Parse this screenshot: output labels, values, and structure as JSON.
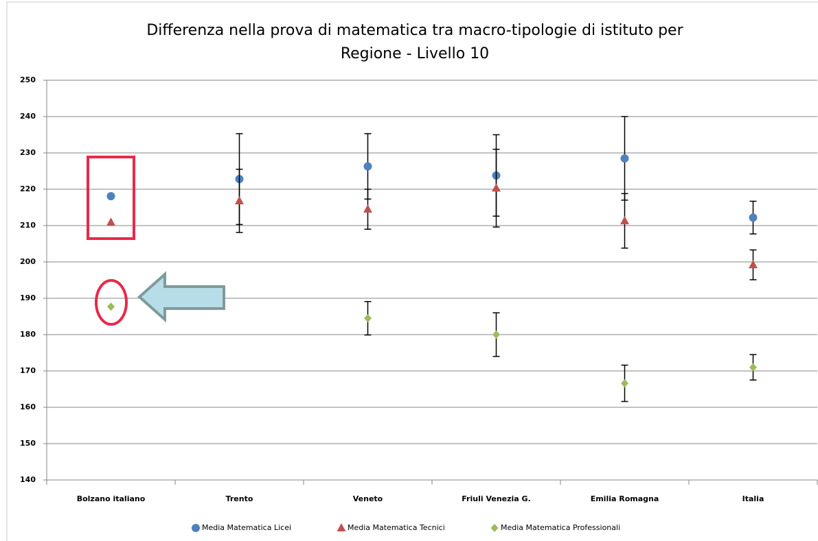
{
  "chart_data": {
    "type": "scatter",
    "title": [
      "Differenza nella prova di matematica tra macro-tipologie di istituto per",
      "Regione - Livello 10"
    ],
    "categories": [
      "Bolzano italiano",
      "Trento",
      "Veneto",
      "Friuli Venezia G.",
      "Emilia Romagna",
      "Italia"
    ],
    "series": [
      {
        "name": "Media Matematica Licei",
        "color": "#4f81bd",
        "marker": "circle",
        "values": [
          218.1,
          222.8,
          226.3,
          223.8,
          228.5,
          212.2
        ],
        "errors": [
          null,
          12.5,
          9,
          11.2,
          11.5,
          4.5
        ]
      },
      {
        "name": "Media Matematica Tecnici",
        "color": "#c0504d",
        "marker": "triangle",
        "values": [
          210.9,
          216.8,
          214.5,
          220.3,
          211.3,
          199.2
        ],
        "errors": [
          null,
          8.7,
          5.5,
          10.7,
          7.5,
          4.1
        ]
      },
      {
        "name": "Media Matematica Professionali",
        "color": "#9bbb59",
        "marker": "diamond",
        "values": [
          187.7,
          null,
          184.5,
          180,
          166.6,
          171
        ],
        "errors": [
          null,
          null,
          4.6,
          6,
          5,
          3.5
        ]
      }
    ],
    "ylim": [
      140,
      250
    ],
    "yticks": [
      140,
      150,
      160,
      170,
      180,
      190,
      200,
      210,
      220,
      230,
      240,
      250
    ],
    "grid": true,
    "legend": "bottom"
  }
}
